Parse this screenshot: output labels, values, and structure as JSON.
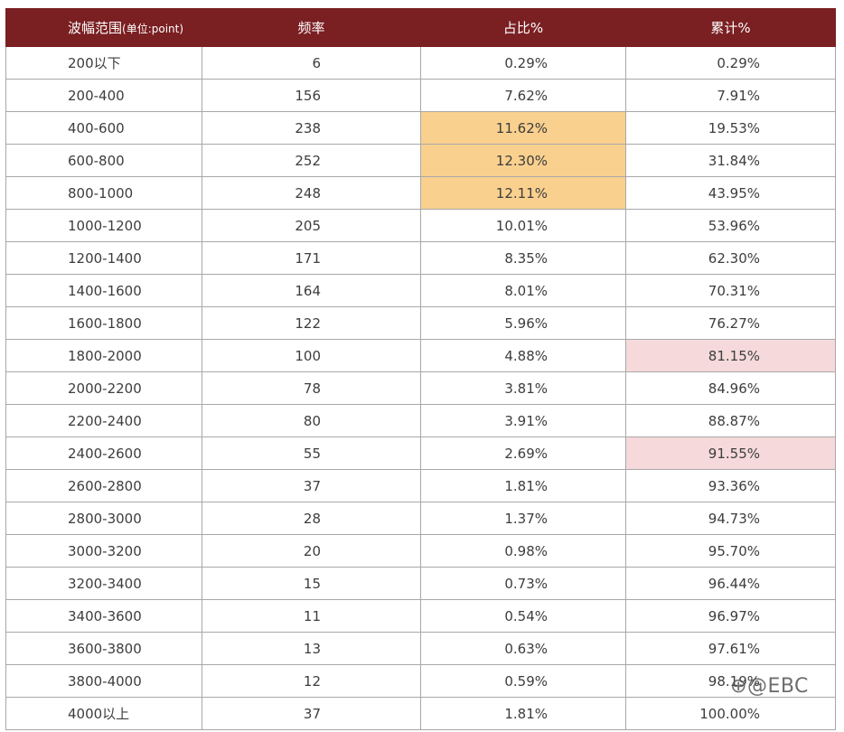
{
  "table": {
    "headers": {
      "range": "波幅范围",
      "range_unit": "(单位:point)",
      "frequency": "频率",
      "share": "占比%",
      "cumulative": "累计%"
    },
    "rows": [
      {
        "range": "200以下",
        "frequency": "6",
        "share": "0.29%",
        "cumulative": "0.29%"
      },
      {
        "range": "200-400",
        "frequency": "156",
        "share": "7.62%",
        "cumulative": "7.91%"
      },
      {
        "range": "400-600",
        "frequency": "238",
        "share": "11.62%",
        "cumulative": "19.53%"
      },
      {
        "range": "600-800",
        "frequency": "252",
        "share": "12.30%",
        "cumulative": "31.84%"
      },
      {
        "range": "800-1000",
        "frequency": "248",
        "share": "12.11%",
        "cumulative": "43.95%"
      },
      {
        "range": "1000-1200",
        "frequency": "205",
        "share": "10.01%",
        "cumulative": "53.96%"
      },
      {
        "range": "1200-1400",
        "frequency": "171",
        "share": "8.35%",
        "cumulative": "62.30%"
      },
      {
        "range": "1400-1600",
        "frequency": "164",
        "share": "8.01%",
        "cumulative": "70.31%"
      },
      {
        "range": "1600-1800",
        "frequency": "122",
        "share": "5.96%",
        "cumulative": "76.27%"
      },
      {
        "range": "1800-2000",
        "frequency": "100",
        "share": "4.88%",
        "cumulative": "81.15%"
      },
      {
        "range": "2000-2200",
        "frequency": "78",
        "share": "3.81%",
        "cumulative": "84.96%"
      },
      {
        "range": "2200-2400",
        "frequency": "80",
        "share": "3.91%",
        "cumulative": "88.87%"
      },
      {
        "range": "2400-2600",
        "frequency": "55",
        "share": "2.69%",
        "cumulative": "91.55%"
      },
      {
        "range": "2600-2800",
        "frequency": "37",
        "share": "1.81%",
        "cumulative": "93.36%"
      },
      {
        "range": "2800-3000",
        "frequency": "28",
        "share": "1.37%",
        "cumulative": "94.73%"
      },
      {
        "range": "3000-3200",
        "frequency": "20",
        "share": "0.98%",
        "cumulative": "95.70%"
      },
      {
        "range": "3200-3400",
        "frequency": "15",
        "share": "0.73%",
        "cumulative": "96.44%"
      },
      {
        "range": "3400-3600",
        "frequency": "11",
        "share": "0.54%",
        "cumulative": "96.97%"
      },
      {
        "range": "3600-3800",
        "frequency": "13",
        "share": "0.63%",
        "cumulative": "97.61%"
      },
      {
        "range": "3800-4000",
        "frequency": "12",
        "share": "0.59%",
        "cumulative": "98.19%"
      },
      {
        "range": "4000以上",
        "frequency": "37",
        "share": "1.81%",
        "cumulative": "100.00%"
      }
    ]
  },
  "highlights": {
    "share_rows": [
      2,
      3,
      4
    ],
    "cumulative_rows": [
      9,
      12
    ],
    "orange": "#f9d08e",
    "pink": "#f6dadb"
  },
  "colors": {
    "header_bg": "#7a1f22",
    "border": "#a8a8a8"
  },
  "watermark": "@EBC",
  "watermark_icon": "weibo-logo-icon"
}
